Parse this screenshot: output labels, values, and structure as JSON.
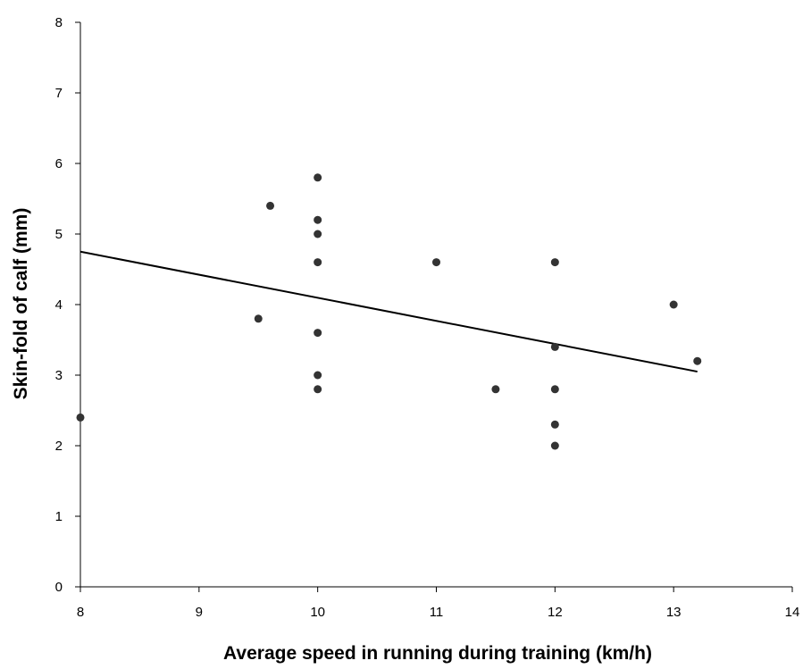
{
  "chart_data": {
    "type": "scatter",
    "xlabel": "Average speed in running during training (km/h)",
    "ylabel": "Skin-fold of calf (mm)",
    "xlim": [
      8,
      14
    ],
    "ylim": [
      0,
      8
    ],
    "xticks": [
      8,
      9,
      10,
      11,
      12,
      13,
      14
    ],
    "yticks": [
      0,
      1,
      2,
      3,
      4,
      5,
      6,
      7,
      8
    ],
    "grid": false,
    "series": [
      {
        "points": [
          [
            8.0,
            2.4
          ],
          [
            9.5,
            3.8
          ],
          [
            9.6,
            5.4
          ],
          [
            10.0,
            5.8
          ],
          [
            10.0,
            5.2
          ],
          [
            10.0,
            5.0
          ],
          [
            10.0,
            4.6
          ],
          [
            10.0,
            3.6
          ],
          [
            10.0,
            3.0
          ],
          [
            10.0,
            2.8
          ],
          [
            11.0,
            4.6
          ],
          [
            11.5,
            2.8
          ],
          [
            12.0,
            4.6
          ],
          [
            12.0,
            3.4
          ],
          [
            12.0,
            2.8
          ],
          [
            12.0,
            2.3
          ],
          [
            12.0,
            2.0
          ],
          [
            13.0,
            4.0
          ],
          [
            13.2,
            3.2
          ]
        ],
        "color": "#333333"
      }
    ],
    "trendline": {
      "x": [
        8.0,
        13.2
      ],
      "y": [
        4.75,
        3.05
      ],
      "color": "#000000"
    }
  }
}
